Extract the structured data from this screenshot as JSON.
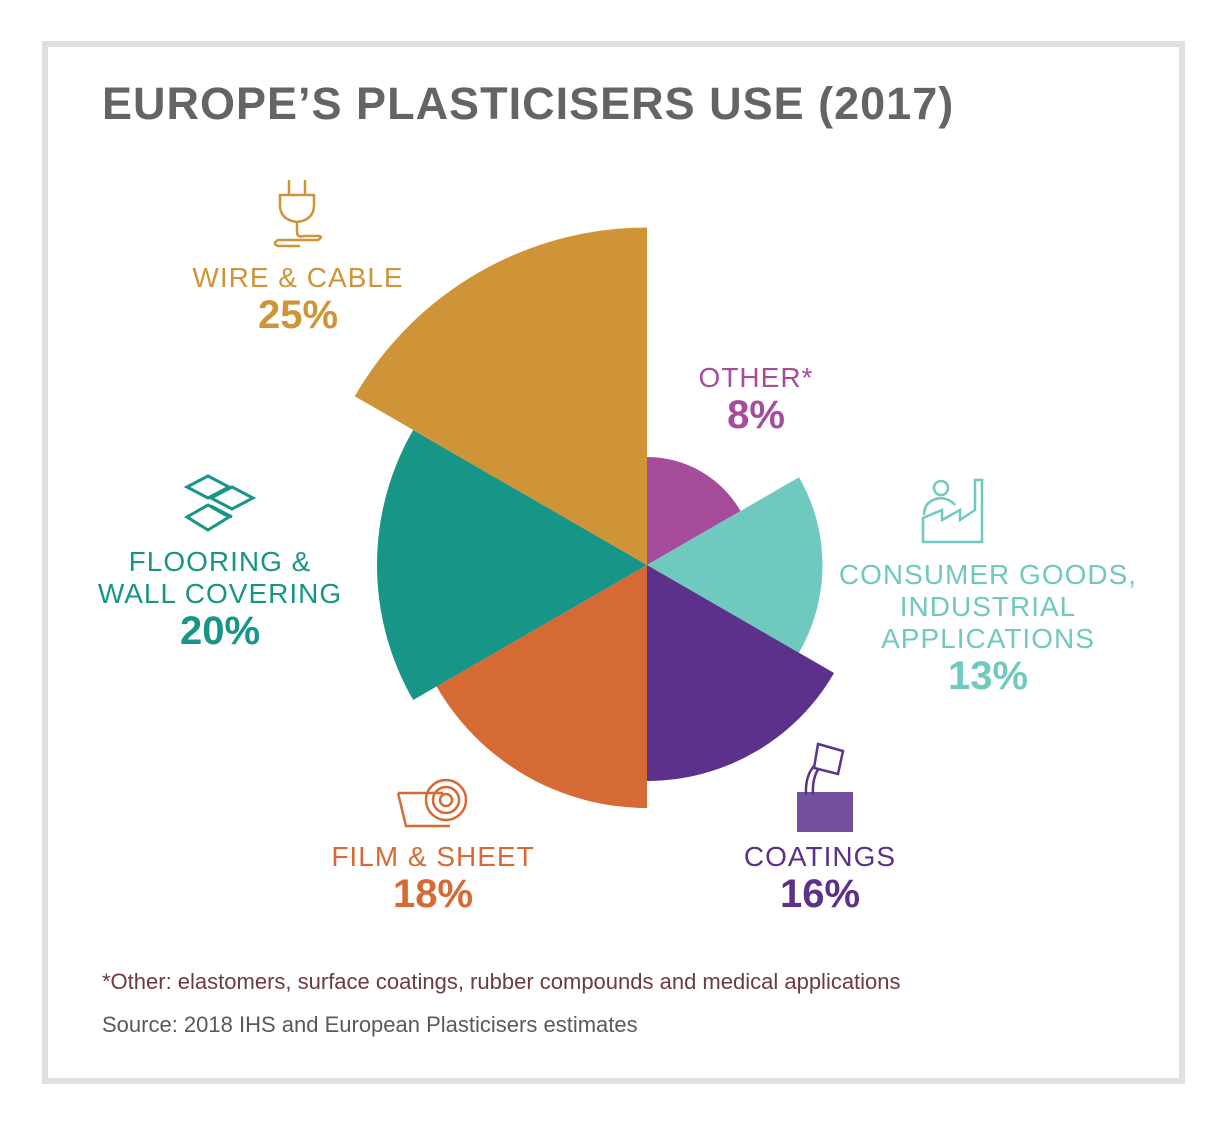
{
  "title": "EUROPE’S PLASTICISERS USE (2017)",
  "footnote": "*Other: elastomers, surface coatings, rubber compounds and medical applications",
  "source": "Source: 2018 IHS and European Plasticisers estimates",
  "chart_data": {
    "type": "pie",
    "variant": "polar-area (equal angles, radius proportional to share)",
    "title": "EUROPE’S PLASTICISERS USE (2017)",
    "unit": "%",
    "slices": [
      {
        "label": "OTHER*",
        "value": 8,
        "pct_label": "8%",
        "color": "#A54C9B",
        "icon": "none"
      },
      {
        "label": "CONSUMER GOODS, INDUSTRIAL APPLICATIONS",
        "lines": [
          "CONSUMER GOODS,",
          "INDUSTRIAL",
          "APPLICATIONS"
        ],
        "value": 13,
        "pct_label": "13%",
        "color": "#6FC9BF",
        "icon": "person-factory-icon"
      },
      {
        "label": "COATINGS",
        "value": 16,
        "pct_label": "16%",
        "color": "#5B318B",
        "icon": "paint-pour-icon"
      },
      {
        "label": "FILM & SHEET",
        "value": 18,
        "pct_label": "18%",
        "color": "#D66A35",
        "icon": "film-roll-icon"
      },
      {
        "label": "FLOORING & WALL COVERING",
        "lines": [
          "FLOORING &",
          "WALL COVERING"
        ],
        "value": 20,
        "pct_label": "20%",
        "color": "#179587",
        "icon": "tiles-icon"
      },
      {
        "label": "WIRE & CABLE",
        "value": 25,
        "pct_label": "25%",
        "color": "#CF9438",
        "icon": "plug-icon"
      }
    ]
  }
}
